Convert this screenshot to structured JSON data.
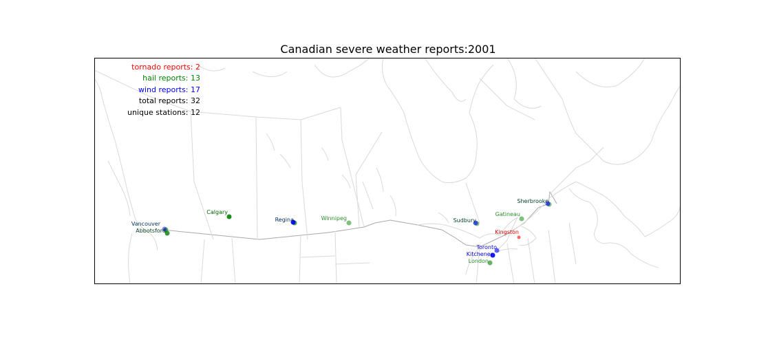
{
  "title": "Canadian severe weather reports:2001",
  "stats": [
    {
      "label": "tornado reports: 2",
      "color": "#ff0000"
    },
    {
      "label": "hail reports: 13",
      "color": "#008000"
    },
    {
      "label": "wind reports: 17",
      "color": "#0000ff"
    },
    {
      "label": "total reports: 32",
      "color": "#000000"
    },
    {
      "label": "unique stations: 12",
      "color": "#000000"
    }
  ],
  "colors": {
    "tornado": "#ff0000",
    "hail": "#008000",
    "wind": "#0000ff",
    "land_outline": "#d9d9d9",
    "border": "#a8a8a8"
  },
  "stations": [
    {
      "name": "Vancouver",
      "label_color": "#003355",
      "markers": [
        {
          "type": "hail",
          "alpha": 0.6
        },
        {
          "type": "wind",
          "alpha": 0.5
        }
      ]
    },
    {
      "name": "Abbotsford",
      "label_color": "#003d1a",
      "markers": [
        {
          "type": "hail",
          "alpha": 0.8
        }
      ]
    },
    {
      "name": "Calgary",
      "label_color": "#006400",
      "markers": [
        {
          "type": "hail",
          "alpha": 0.9
        }
      ]
    },
    {
      "name": "Regina",
      "label_color": "#002a55",
      "markers": [
        {
          "type": "hail",
          "alpha": 0.7
        },
        {
          "type": "wind",
          "alpha": 0.9
        }
      ]
    },
    {
      "name": "Winnipeg",
      "label_color": "#2e8b2e",
      "markers": [
        {
          "type": "hail",
          "alpha": 0.5
        }
      ]
    },
    {
      "name": "Sudbury",
      "label_color": "#003d2a",
      "markers": [
        {
          "type": "hail",
          "alpha": 0.5
        },
        {
          "type": "wind",
          "alpha": 0.6
        }
      ]
    },
    {
      "name": "Gatineau",
      "label_color": "#2e8b2e",
      "markers": [
        {
          "type": "hail",
          "alpha": 0.5
        }
      ]
    },
    {
      "name": "Sherbrooke",
      "label_color": "#003d2a",
      "markers": [
        {
          "type": "hail",
          "alpha": 0.5
        },
        {
          "type": "wind",
          "alpha": 0.6
        }
      ]
    },
    {
      "name": "Kingston",
      "label_color": "#e00000",
      "markers": [
        {
          "type": "tornado",
          "alpha": 0.6
        }
      ]
    },
    {
      "name": "Toronto",
      "label_color": "#0000cc",
      "markers": [
        {
          "type": "wind",
          "alpha": 0.6
        }
      ]
    },
    {
      "name": "Kitchener",
      "label_color": "#0000cc",
      "markers": [
        {
          "type": "wind",
          "alpha": 0.9
        }
      ]
    },
    {
      "name": "London",
      "label_color": "#2e8b2e",
      "markers": [
        {
          "type": "hail",
          "alpha": 0.6
        }
      ]
    }
  ]
}
